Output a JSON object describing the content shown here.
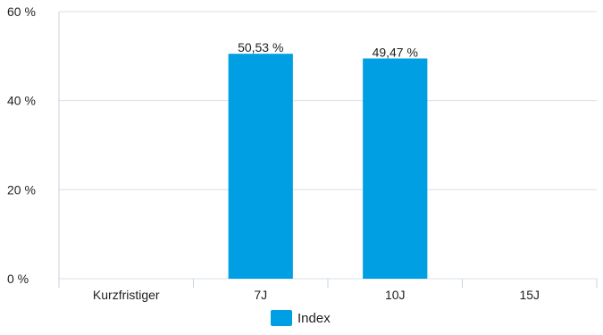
{
  "chart_data": {
    "type": "bar",
    "categories": [
      "Kurzfristiger",
      "7J",
      "10J",
      "15J"
    ],
    "series": [
      {
        "name": "Index",
        "values": [
          null,
          50.53,
          49.47,
          null
        ],
        "labels": [
          "",
          "50,53 %",
          "49,47 %",
          ""
        ],
        "color": "#009fe3"
      }
    ],
    "yticks": [
      "0 %",
      "20 %",
      "40 %",
      "60 %"
    ],
    "ytick_values": [
      0,
      20,
      40,
      60
    ],
    "ylim": [
      0,
      60
    ],
    "grid": true,
    "legend": "bottom-center"
  },
  "colors": {
    "bar": "#009fe3",
    "grid": "#d9e1ea",
    "axis": "#c9d3de"
  }
}
